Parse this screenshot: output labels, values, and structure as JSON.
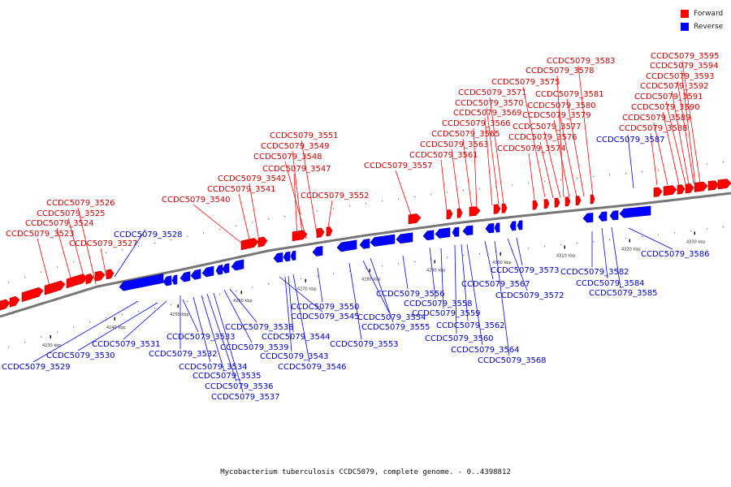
{
  "legend": {
    "forward_label": "Forward",
    "reverse_label": "Reverse",
    "forward_color": "#ff0000",
    "reverse_color": "#0000ff"
  },
  "caption": "Mycobacterium tuberculosis CCDC5079, complete genome. - 0..4398812",
  "ticks": [
    "4230 kbp",
    "4240 kbp",
    "4250 kbp",
    "4260 kbp",
    "4270 kbp",
    "4280 kbp",
    "4290 kbp",
    "4300 kbp",
    "4310 kbp",
    "4320 kbp",
    "4330 kbp"
  ],
  "forward_genes": [
    "CCDC5079_3523",
    "CCDC5079_3524",
    "CCDC5079_3525",
    "CCDC5079_3526",
    "CCDC5079_3527",
    "CCDC5079_3540",
    "CCDC5079_3541",
    "CCDC5079_3542",
    "CCDC5079_3547",
    "CCDC5079_3548",
    "CCDC5079_3549",
    "CCDC5079_3551",
    "CCDC5079_3552",
    "CCDC5079_3557",
    "CCDC5079_3561",
    "CCDC5079_3563",
    "CCDC5079_3565",
    "CCDC5079_3566",
    "CCDC5079_3569",
    "CCDC5079_3570",
    "CCDC5079_3571",
    "CCDC5079_3574",
    "CCDC5079_3575",
    "CCDC5079_3576",
    "CCDC5079_3577",
    "CCDC5079_3578",
    "CCDC5079_3579",
    "CCDC5079_3580",
    "CCDC5079_3581",
    "CCDC5079_3583",
    "CCDC5079_3588",
    "CCDC5079_3589",
    "CCDC5079_3590",
    "CCDC5079_3591",
    "CCDC5079_3592",
    "CCDC5079_3593",
    "CCDC5079_3594",
    "CCDC5079_3595"
  ],
  "reverse_genes": [
    "CCDC5079_3528",
    "CCDC5079_3529",
    "CCDC5079_3530",
    "CCDC5079_3531",
    "CCDC5079_3532",
    "CCDC5079_3533",
    "CCDC5079_3534",
    "CCDC5079_3535",
    "CCDC5079_3536",
    "CCDC5079_3537",
    "CCDC5079_3538",
    "CCDC5079_3539",
    "CCDC5079_3543",
    "CCDC5079_3544",
    "CCDC5079_3545",
    "CCDC5079_3546",
    "CCDC5079_3550",
    "CCDC5079_3553",
    "CCDC5079_3554",
    "CCDC5079_3555",
    "CCDC5079_3556",
    "CCDC5079_3558",
    "CCDC5079_3559",
    "CCDC5079_3560",
    "CCDC5079_3562",
    "CCDC5079_3564",
    "CCDC5079_3567",
    "CCDC5079_3568",
    "CCDC5079_3572",
    "CCDC5079_3573",
    "CCDC5079_3582",
    "CCDC5079_3584",
    "CCDC5079_3585",
    "CCDC5079_3586",
    "CCDC5079_3587"
  ]
}
